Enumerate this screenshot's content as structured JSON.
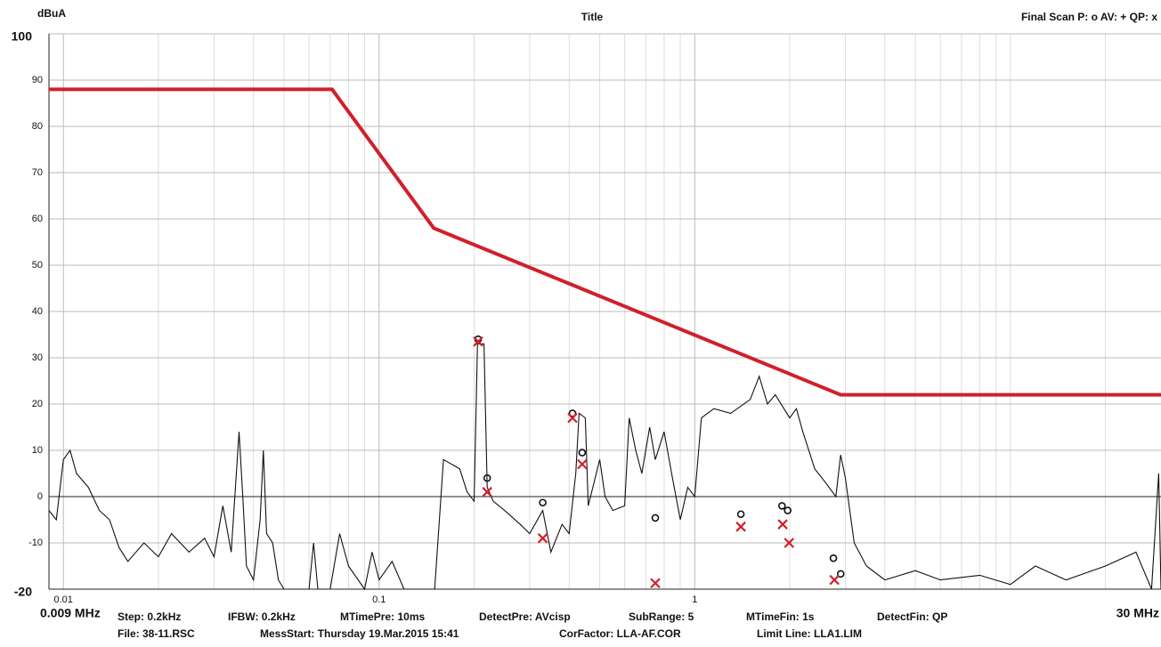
{
  "chart_data": {
    "type": "line",
    "title": "Title",
    "y_label": "dBuA",
    "legend_text": "Final Scan P: o  AV: +  QP: x",
    "x_start_label": "0.009 MHz",
    "x_end_label": "30 MHz",
    "xlim": [
      0.009,
      30
    ],
    "xlog": true,
    "xticks": [
      0.01,
      0.1,
      1
    ],
    "xminor": [
      0.02,
      0.03,
      0.04,
      0.05,
      0.06,
      0.07,
      0.08,
      0.09,
      0.2,
      0.3,
      0.4,
      0.5,
      0.6,
      0.7,
      0.8,
      0.9,
      2,
      3,
      4,
      5,
      6,
      7,
      8,
      9,
      10,
      20
    ],
    "ylim": [
      -20,
      100
    ],
    "yticks": [
      -20,
      -10,
      0,
      10,
      20,
      30,
      40,
      50,
      60,
      70,
      80,
      90,
      100
    ],
    "grid": true,
    "series": [
      {
        "name": "Limit",
        "color": "#d0202a",
        "x": [
          0.009,
          0.071,
          0.149,
          2.9,
          30
        ],
        "values": [
          88,
          88,
          58,
          22,
          22
        ]
      },
      {
        "name": "Trace",
        "color": "#111111",
        "x": [
          0.009,
          0.0095,
          0.01,
          0.0105,
          0.011,
          0.012,
          0.013,
          0.014,
          0.015,
          0.016,
          0.018,
          0.02,
          0.022,
          0.025,
          0.028,
          0.03,
          0.032,
          0.034,
          0.036,
          0.037,
          0.038,
          0.04,
          0.042,
          0.043,
          0.044,
          0.046,
          0.048,
          0.05,
          0.06,
          0.062,
          0.064,
          0.07,
          0.075,
          0.08,
          0.09,
          0.095,
          0.1,
          0.11,
          0.12,
          0.15,
          0.16,
          0.18,
          0.19,
          0.2,
          0.205,
          0.215,
          0.22,
          0.23,
          0.25,
          0.28,
          0.3,
          0.33,
          0.35,
          0.38,
          0.4,
          0.42,
          0.43,
          0.45,
          0.46,
          0.5,
          0.52,
          0.55,
          0.6,
          0.62,
          0.65,
          0.68,
          0.72,
          0.75,
          0.8,
          0.85,
          0.9,
          0.95,
          1.0,
          1.05,
          1.15,
          1.3,
          1.5,
          1.6,
          1.7,
          1.8,
          2.0,
          2.1,
          2.2,
          2.4,
          2.6,
          2.8,
          2.9,
          3.0,
          3.2,
          3.5,
          4,
          5,
          6,
          8,
          10,
          12,
          15,
          20,
          25,
          28,
          29.5,
          30
        ],
        "values": [
          -3,
          -5,
          8,
          10,
          5,
          2,
          -3,
          -5,
          -11,
          -14,
          -10,
          -13,
          -8,
          -12,
          -9,
          -13,
          -2,
          -12,
          14,
          0,
          -15,
          -18,
          -5,
          10,
          -8,
          -10,
          -18,
          -20,
          -20,
          -10,
          -20,
          -20,
          -8,
          -15,
          -20,
          -12,
          -18,
          -14,
          -20,
          -20,
          8,
          6,
          1,
          -1,
          33,
          33,
          2,
          -1,
          -3,
          -6,
          -8,
          -3,
          -12,
          -6,
          -8,
          5,
          18,
          17,
          -2,
          8,
          0,
          -3,
          -2,
          17,
          10,
          5,
          15,
          8,
          14,
          4,
          -5,
          2,
          0,
          17,
          19,
          18,
          21,
          26,
          20,
          22,
          17,
          19,
          14,
          6,
          3,
          0,
          9,
          4,
          -10,
          -15,
          -18,
          -16,
          -18,
          -17,
          -19,
          -15,
          -18,
          -15,
          -12,
          -20,
          5,
          -20
        ]
      },
      {
        "name": "P",
        "color": "#111111",
        "marker": "circle",
        "x": [
          0.206,
          0.22,
          0.33,
          0.41,
          0.44,
          0.75,
          1.4,
          1.89,
          1.97,
          2.75,
          2.9
        ],
        "values": [
          34,
          4,
          -1.3,
          18,
          9.5,
          -4.6,
          -3.8,
          -2,
          -3,
          -13.3,
          -16.7
        ]
      },
      {
        "name": "AV",
        "color": "#d0202a",
        "marker": "cross",
        "x": [
          0.206,
          0.22,
          0.33,
          0.41,
          0.44,
          0.75,
          1.4,
          1.9,
          1.99,
          2.77
        ],
        "values": [
          33.5,
          1,
          -9,
          17,
          7,
          -18.7,
          -6.5,
          -6,
          -10,
          -18
        ]
      }
    ]
  },
  "footer": {
    "line1": [
      "Step: 0.2kHz",
      "IFBW: 0.2kHz",
      "MTimePre: 10ms",
      "DetectPre: AVcisp",
      "SubRange: 5",
      "MTimeFin: 1s",
      "DetectFin: QP"
    ],
    "line2": [
      "File: 38-11.RSC",
      "MessStart: Thursday 19.Mar.2015 15:41",
      "CorFactor: LLA-AF.COR",
      "Limit Line: LLA1.LIM"
    ]
  }
}
